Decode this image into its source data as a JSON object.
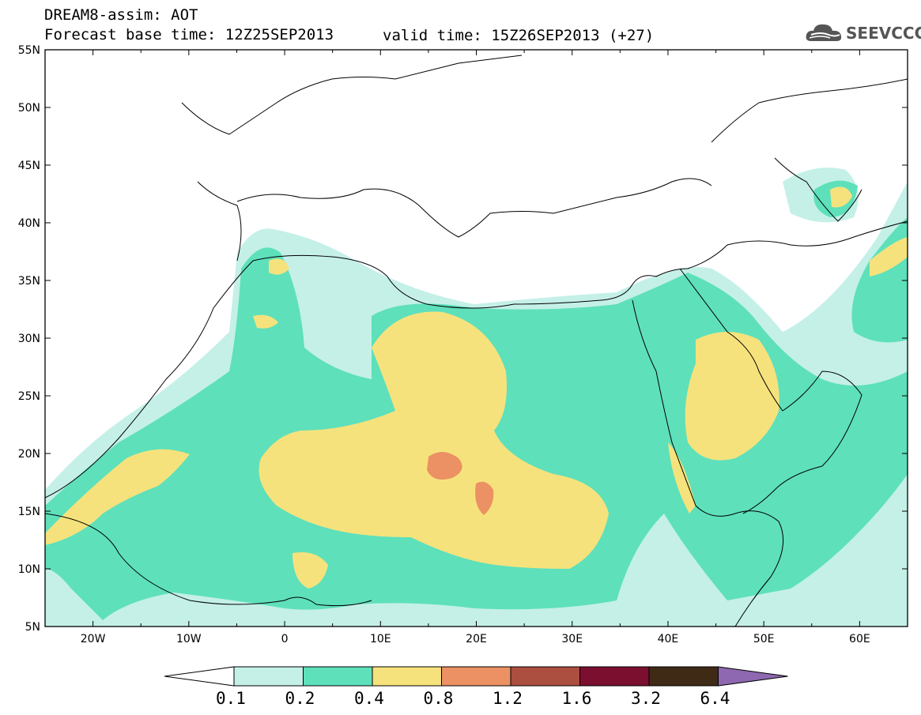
{
  "header": {
    "title_line1": "DREAM8-assim: AOT",
    "title_line2_base": "Forecast base time: 12Z25SEP2013",
    "title_line2_valid": "valid time: 15Z26SEP2013 (+27)"
  },
  "logo": {
    "text": "SEEVCCC",
    "icon": "cloud-icon"
  },
  "map": {
    "lon_ticks": [
      "20W",
      "10W",
      "0",
      "10E",
      "20E",
      "30E",
      "40E",
      "50E",
      "60E"
    ],
    "lat_ticks": [
      "55N",
      "50N",
      "45N",
      "40N",
      "35N",
      "30N",
      "25N",
      "20N",
      "15N",
      "10N",
      "5N"
    ],
    "lon_range": [
      -25,
      65
    ],
    "lat_range": [
      5,
      55
    ],
    "variable": "AOT"
  },
  "colorbar": {
    "labels": [
      "0.1",
      "0.2",
      "0.4",
      "0.8",
      "1.2",
      "1.6",
      "3.2",
      "6.4"
    ],
    "colors": [
      "#ffffff",
      "#c4f0e8",
      "#5ee0bb",
      "#f6e27c",
      "#eb9164",
      "#ac4e40",
      "#7a0f2f",
      "#3f2a16",
      "#8e68b0"
    ]
  }
}
